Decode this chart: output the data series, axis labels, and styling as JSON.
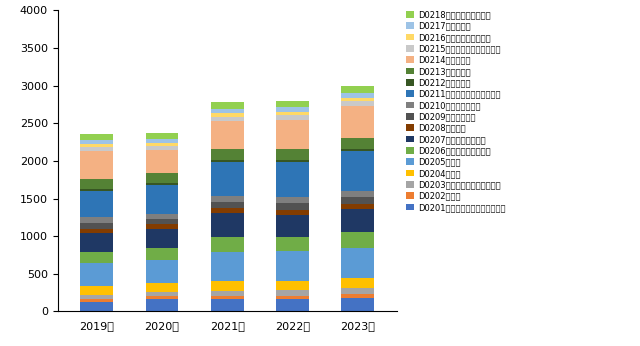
{
  "years": [
    "2019年",
    "2020年",
    "2021年",
    "2022年",
    "2023年"
  ],
  "categories": [
    "D0201古生物、古人类和古生态学",
    "D0202地层学",
    "D0203矿物学（含矿物物理学）",
    "D0204岩石学",
    "D0205矿床学",
    "D0206沉积学和盆地动力学",
    "D0207石油天然气地质学",
    "D0208煤地质学",
    "D0209第四纪地质学",
    "D0210前寒武纪地质学",
    "D0211大地构造学与构造地质学",
    "D0212行星地质学",
    "D0213水文地质学",
    "D0214工程地质学",
    "D0215数学地质学与遥感地质学",
    "D0216火山学和地热地质学",
    "D0217生物地质学",
    "D0218勘探技术与地质钒探"
  ],
  "colors": [
    "#4472C4",
    "#ED7D31",
    "#A5A5A5",
    "#FFC000",
    "#5B9BD5",
    "#70AD47",
    "#1F3864",
    "#833C00",
    "#525252",
    "#7F7F7F",
    "#2E75B6",
    "#375623",
    "#548235",
    "#F4B183",
    "#C9C9C9",
    "#FFD966",
    "#9DC3E6",
    "#92D050"
  ],
  "values": [
    [
      130,
      160,
      165,
      165,
      180
    ],
    [
      35,
      40,
      40,
      45,
      50
    ],
    [
      55,
      60,
      70,
      70,
      75
    ],
    [
      115,
      120,
      130,
      130,
      140
    ],
    [
      305,
      300,
      390,
      390,
      400
    ],
    [
      150,
      160,
      190,
      195,
      215
    ],
    [
      255,
      260,
      325,
      290,
      305
    ],
    [
      55,
      55,
      60,
      60,
      60
    ],
    [
      80,
      75,
      90,
      90,
      90
    ],
    [
      75,
      70,
      80,
      85,
      85
    ],
    [
      345,
      380,
      440,
      460,
      525
    ],
    [
      30,
      25,
      30,
      30,
      30
    ],
    [
      130,
      130,
      145,
      150,
      155
    ],
    [
      365,
      310,
      375,
      385,
      415
    ],
    [
      60,
      55,
      55,
      60,
      65
    ],
    [
      35,
      40,
      45,
      50,
      50
    ],
    [
      55,
      55,
      60,
      55,
      60
    ],
    [
      80,
      75,
      90,
      90,
      95
    ]
  ],
  "ylim": [
    0,
    4000
  ],
  "yticks": [
    0,
    500,
    1000,
    1500,
    2000,
    2500,
    3000,
    3500,
    4000
  ],
  "bar_width": 0.5
}
